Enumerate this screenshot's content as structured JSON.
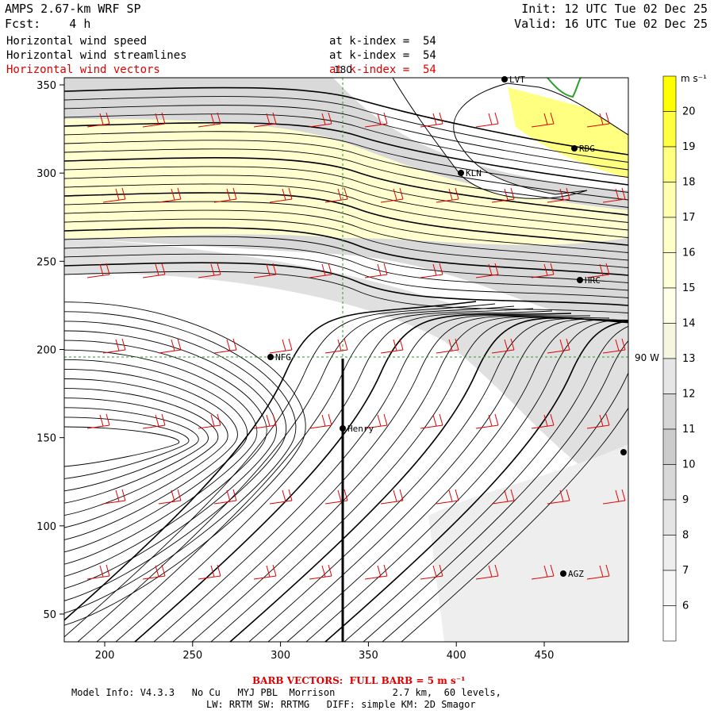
{
  "header": {
    "model": "AMPS 2.67-km WRF SP",
    "forecast": "Fcst:    4 h",
    "init": "Init: 12 UTC Tue 02 Dec 25",
    "valid": "Valid: 16 UTC Tue 02 Dec 25"
  },
  "fields": [
    {
      "name": "Horizontal wind speed",
      "level": "at k-index =  54",
      "color": "#000000"
    },
    {
      "name": "Horizontal wind streamlines",
      "level": "at k-index =  54",
      "color": "#000000"
    },
    {
      "name": "Horizontal wind vectors",
      "level": "at k-index =  54",
      "color": "#e00000"
    }
  ],
  "axes": {
    "x_ticks": [
      "200",
      "250",
      "300",
      "350",
      "400",
      "450"
    ],
    "y_ticks": [
      "350",
      "300",
      "250",
      "200",
      "150",
      "100",
      "50"
    ],
    "meridian_label": "180",
    "parallel_label": "90 W"
  },
  "stations": [
    {
      "id": "LVT",
      "label": "LVT"
    },
    {
      "id": "RDG",
      "label": "RDG"
    },
    {
      "id": "KLN",
      "label": "KLN"
    },
    {
      "id": "HRC",
      "label": "HRC"
    },
    {
      "id": "NFG",
      "label": "NFG"
    },
    {
      "id": "Henry",
      "label": "Henry"
    },
    {
      "id": "AGZ",
      "label": "AGZ"
    }
  ],
  "colorbar": {
    "unit": "m s⁻¹",
    "labels": [
      "20",
      "19",
      "18",
      "17",
      "16",
      "15",
      "14",
      "13",
      "12",
      "11",
      "10",
      "9",
      "8",
      "7",
      "6"
    ],
    "colors": [
      "#ffff00",
      "#ffff40",
      "#ffff80",
      "#ffffb0",
      "#ffffc8",
      "#ffffd8",
      "#ffffe8",
      "#f6f6e0",
      "#e6e6e6",
      "#d6d6d6",
      "#cccccc",
      "#d8d8d8",
      "#e4e4e4",
      "#eeeeee",
      "#f7f7f7",
      "#ffffff"
    ]
  },
  "footer": {
    "barb": "BARB VECTORS:  FULL BARB = 5 m s⁻¹",
    "model_info": "Model Info: V4.3.3   No Cu   MYJ PBL  Morrison          2.7 km,  60 levels,",
    "physics": "LW: RRTM SW: RRTMG   DIFF: simple KM: 2D Smagor"
  }
}
